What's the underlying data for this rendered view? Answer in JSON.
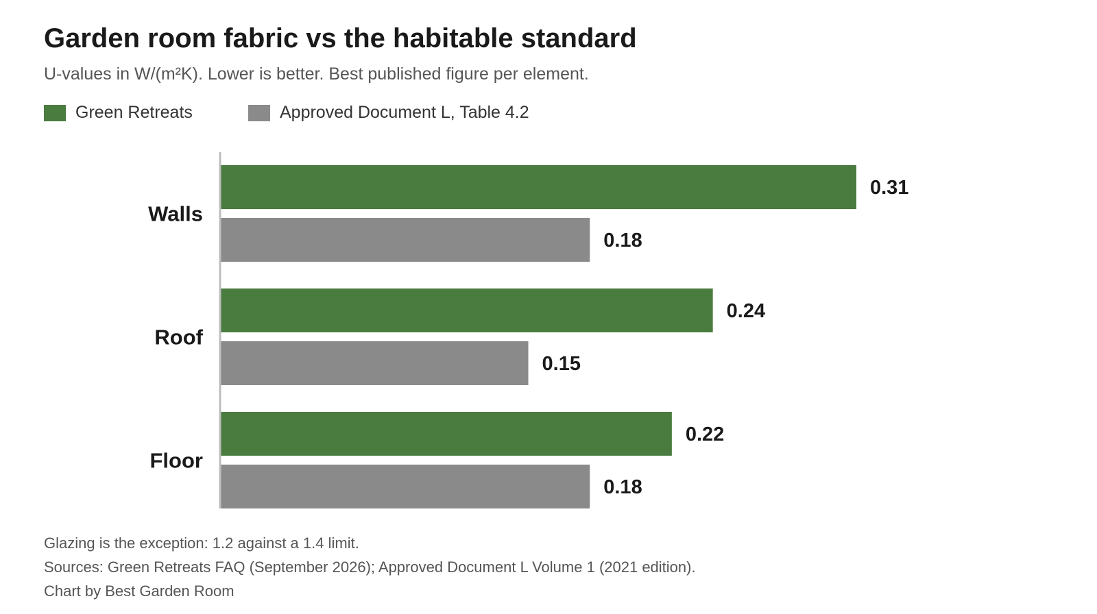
{
  "chart_data": {
    "type": "bar",
    "orientation": "horizontal",
    "title": "Garden room fabric vs the habitable standard",
    "subtitle": "U-values in W/(m²K). Lower is better. Best published figure per element.",
    "categories": [
      "Walls",
      "Roof",
      "Floor"
    ],
    "series": [
      {
        "name": "Green Retreats",
        "values": [
          0.31,
          0.24,
          0.22
        ],
        "labels": [
          "0.31",
          "0.24",
          "0.22"
        ],
        "color": "#4a7c3f"
      },
      {
        "name": "Approved Document L, Table 4.2",
        "values": [
          0.18,
          0.15,
          0.18
        ],
        "labels": [
          "0.18",
          "0.15",
          "0.18"
        ],
        "color": "#8a8a8a"
      }
    ],
    "xlim": [
      0,
      0.31
    ],
    "grid": false,
    "legend_position": "top-left"
  },
  "footnotes": {
    "note": "Glazing is the exception: 1.2 against a 1.4 limit.",
    "sources": "Sources: Green Retreats FAQ (September 2026); Approved Document L Volume 1 (2021 edition).",
    "credit": "Chart by Best Garden Room"
  }
}
